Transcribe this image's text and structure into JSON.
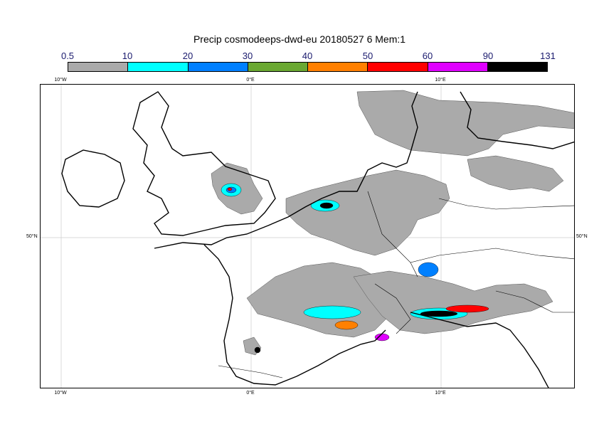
{
  "title": "Precip cosmodeeps-dwd-eu 20180527 6 Mem:1",
  "legend": {
    "labels": [
      "0.5",
      "10",
      "20",
      "30",
      "40",
      "50",
      "60",
      "90",
      "131"
    ],
    "colors": [
      "#aaaaaa",
      "#00ffff",
      "#0080ff",
      "#6aa832",
      "#ff8000",
      "#ff0000",
      "#e000ff",
      "#000000"
    ]
  },
  "map": {
    "lon_ticks": [
      "10°W",
      "0°E",
      "10°E"
    ],
    "lat_ticks": [
      "50°N"
    ],
    "colors": {
      "precip_light": "#aaaaaa",
      "coast": "#000000",
      "border": "#000000",
      "grid": "#cccccc"
    }
  }
}
